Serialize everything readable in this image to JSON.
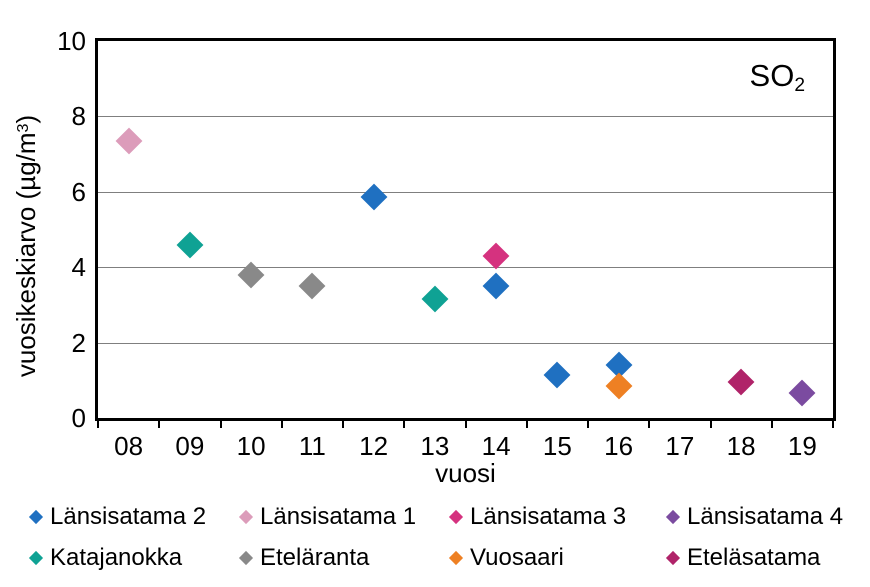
{
  "chart_data": {
    "type": "scatter",
    "title": "SO2",
    "title_parts": {
      "text": "SO",
      "sub": "2"
    },
    "xlabel": "vuosi",
    "ylabel": "vuosikeskiarvo (µg/m3)",
    "ylabel_parts": {
      "text": "vuosikeskiarvo (µg/m",
      "sup": "3",
      "suffix": ")"
    },
    "ylim": [
      0,
      10
    ],
    "yticks": [
      0,
      2,
      4,
      6,
      8,
      10
    ],
    "categories": [
      "08",
      "09",
      "10",
      "11",
      "12",
      "13",
      "14",
      "15",
      "16",
      "17",
      "18",
      "19"
    ],
    "grid": "horizontal",
    "legend_position": "bottom",
    "legend_columns": 4,
    "marker_shape": "diamond",
    "series": [
      {
        "name": "Länsisatama 2",
        "color": "#1F70C1",
        "points": [
          {
            "x": "12",
            "y": 5.85
          },
          {
            "x": "14",
            "y": 3.5
          },
          {
            "x": "15",
            "y": 1.15
          },
          {
            "x": "16",
            "y": 1.4
          }
        ]
      },
      {
        "name": "Länsisatama 1",
        "color": "#DC9CBA",
        "points": [
          {
            "x": "08",
            "y": 7.35
          }
        ]
      },
      {
        "name": "Länsisatama 3",
        "color": "#D5327F",
        "points": [
          {
            "x": "14",
            "y": 4.3
          }
        ]
      },
      {
        "name": "Länsisatama 4",
        "color": "#7B4BA0",
        "points": [
          {
            "x": "19",
            "y": 0.65
          }
        ]
      },
      {
        "name": "Katajanokka",
        "color": "#0FA294",
        "points": [
          {
            "x": "09",
            "y": 4.6
          },
          {
            "x": "13",
            "y": 3.15
          }
        ]
      },
      {
        "name": "Eteläranta",
        "color": "#898989",
        "points": [
          {
            "x": "10",
            "y": 3.8
          },
          {
            "x": "11",
            "y": 3.5
          }
        ]
      },
      {
        "name": "Vuosaari",
        "color": "#EE8023",
        "points": [
          {
            "x": "16",
            "y": 0.85
          }
        ]
      },
      {
        "name": "Eteläsatama",
        "color": "#B02369",
        "points": [
          {
            "x": "18",
            "y": 0.95
          }
        ]
      }
    ]
  }
}
